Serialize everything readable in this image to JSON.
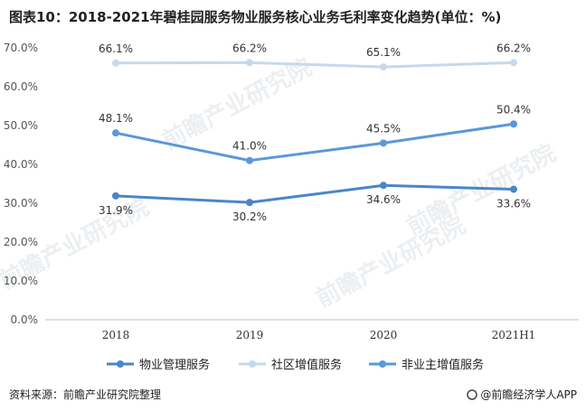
{
  "title": "图表10：2018-2021年碧桂园服务物业服务核心业务毛利率变化趋势(单位：%)",
  "footer": {
    "source": "资料来源：前瞻产业研究院整理",
    "brand": "@前瞻经济学人APP"
  },
  "watermark": "前瞻产业研究院",
  "chart_data": {
    "type": "line",
    "categories": [
      "2018",
      "2019",
      "2020",
      "2021H1"
    ],
    "ylim": [
      0,
      70
    ],
    "yticks": [
      "0.0%",
      "10.0%",
      "20.0%",
      "30.0%",
      "40.0%",
      "50.0%",
      "60.0%",
      "70.0%"
    ],
    "grid": false,
    "legend_position": "bottom",
    "series": [
      {
        "name": "物业管理服务",
        "values": [
          31.9,
          30.2,
          34.6,
          33.6
        ],
        "labels": [
          "31.9%",
          "30.2%",
          "34.6%",
          "33.6%"
        ],
        "color": "#4a86c8",
        "label_pos": "below"
      },
      {
        "name": "社区增值服务",
        "values": [
          66.1,
          66.2,
          65.1,
          66.2
        ],
        "labels": [
          "66.1%",
          "66.2%",
          "65.1%",
          "66.2%"
        ],
        "color": "#c5d9ee",
        "label_pos": "above"
      },
      {
        "name": "非业主增值服务",
        "values": [
          48.1,
          41.0,
          45.5,
          50.4
        ],
        "labels": [
          "48.1%",
          "41.0%",
          "45.5%",
          "50.4%"
        ],
        "color": "#5a98d8",
        "label_pos": "above"
      }
    ]
  }
}
